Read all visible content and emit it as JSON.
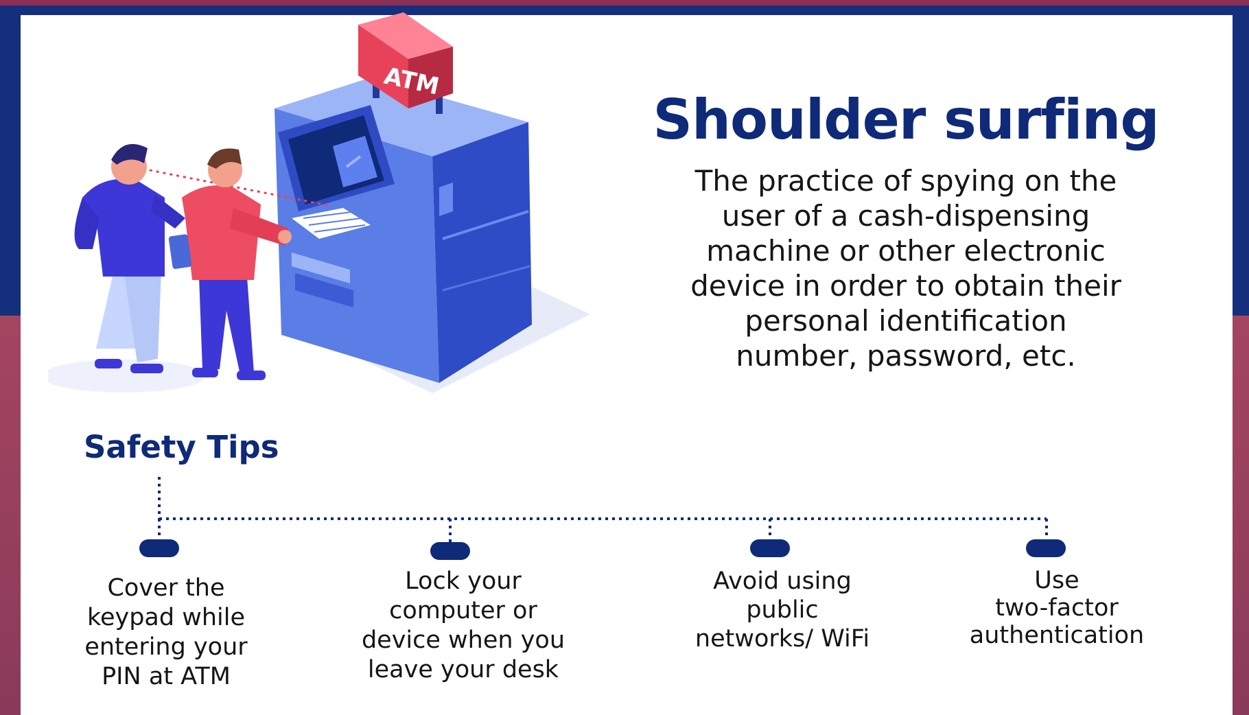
{
  "illustration": {
    "sign_text": "ATM",
    "icon": "atm-shoulder-surfing-illustration"
  },
  "header": {
    "title": "Shoulder surfing",
    "description": "The practice of spying on the\nuser of a cash-dispensing\nmachine or other electronic\ndevice in order to obtain their\npersonal identification\nnumber, password, etc."
  },
  "safety": {
    "label": "Safety Tips",
    "tips": [
      "Cover the\nkeypad while\nentering your\nPIN at ATM",
      "Lock your\ncomputer or\ndevice when you\nleave your desk",
      "Avoid using\npublic\nnetworks/ WiFi",
      "Use\ntwo-factor\nauthentication"
    ]
  },
  "colors": {
    "navy": "#0e2a78",
    "frame_blue": "#14307c",
    "frame_red": "#a44560",
    "atm_blue": "#4a68d8",
    "sign_red": "#e8415a",
    "shirt_purple": "#3e37d8",
    "shirt_red": "#ee4c62"
  }
}
